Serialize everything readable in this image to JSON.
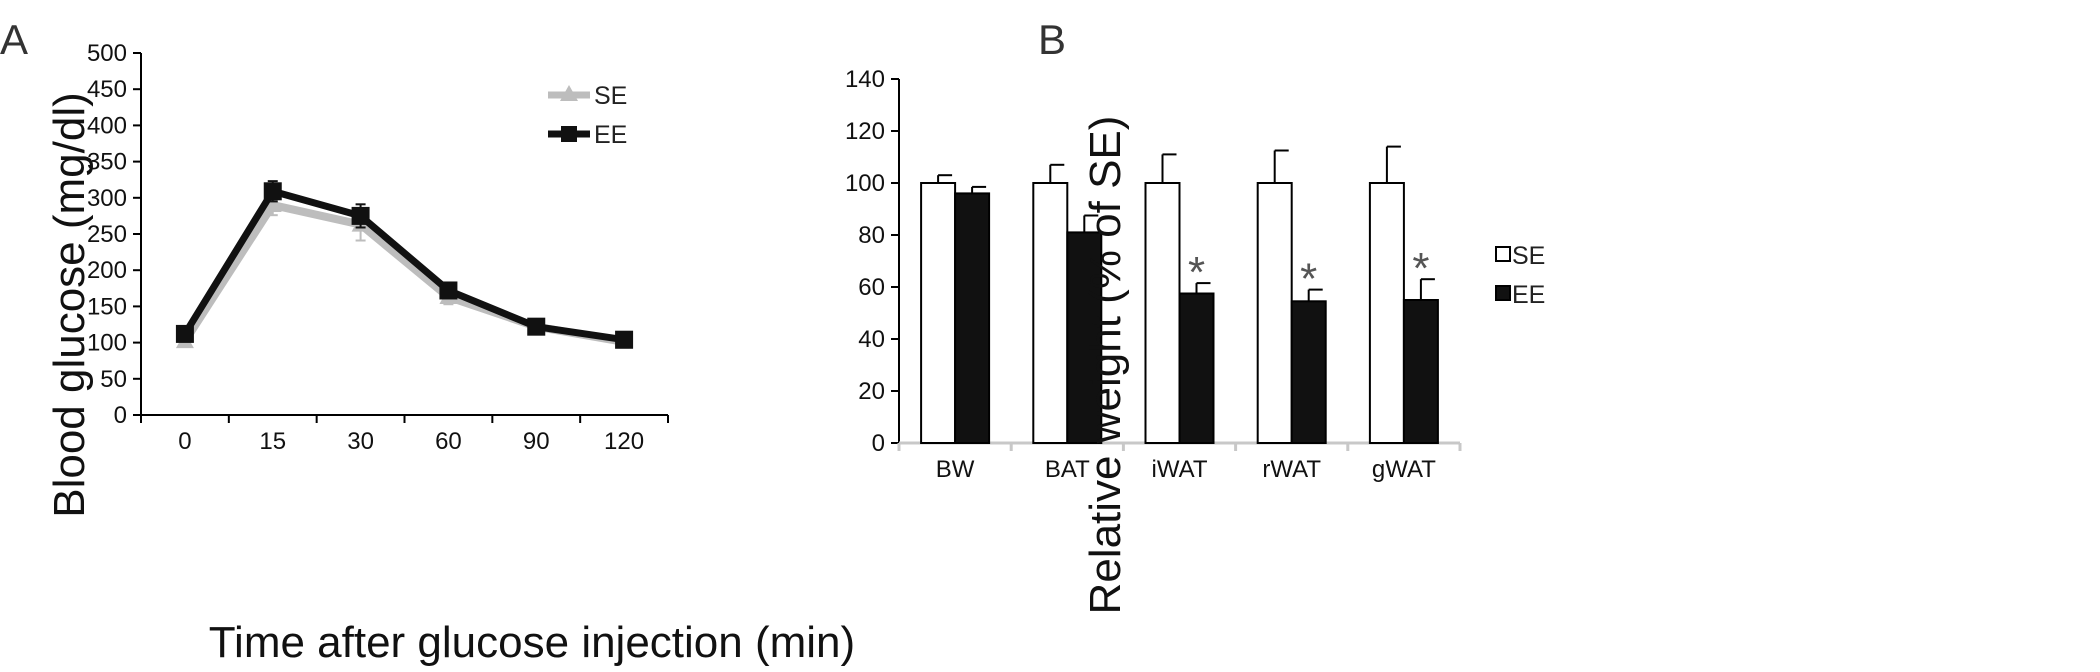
{
  "panels": {
    "a": {
      "letter": "A"
    },
    "b": {
      "letter": "B"
    }
  },
  "chart_data": [
    {
      "type": "line",
      "title": "",
      "xlabel": "Time after glucose injection (min)",
      "ylabel": "Blood glucose (mg/dl)",
      "categories": [
        "0",
        "15",
        "30",
        "60",
        "90",
        "120"
      ],
      "ylim": [
        0,
        500
      ],
      "yticks": [
        0,
        50,
        100,
        150,
        200,
        250,
        300,
        350,
        400,
        450,
        500
      ],
      "grid": false,
      "legend": "top-right",
      "series": [
        {
          "name": "SE",
          "color": "#bdbdbd",
          "marker": "triangle",
          "values": [
            102,
            290,
            263,
            163,
            122,
            101
          ],
          "errors": [
            8,
            14,
            22,
            10,
            6,
            8
          ]
        },
        {
          "name": "EE",
          "color": "#111111",
          "marker": "square",
          "values": [
            112,
            309,
            275,
            172,
            122,
            104
          ],
          "errors": [
            8,
            14,
            16,
            10,
            5,
            7
          ]
        }
      ]
    },
    {
      "type": "bar",
      "title": "",
      "xlabel": "",
      "ylabel": "Relative weight (% of SE)",
      "categories": [
        "BW",
        "BAT",
        "iWAT",
        "rWAT",
        "gWAT"
      ],
      "ylim": [
        0,
        140
      ],
      "yticks": [
        0,
        20,
        40,
        60,
        80,
        100,
        120,
        140
      ],
      "grid": false,
      "legend": "right",
      "series": [
        {
          "name": "SE",
          "color": "#ffffff",
          "values": [
            100,
            100,
            100,
            100,
            100
          ],
          "errors": [
            3,
            7,
            11,
            12.5,
            14
          ]
        },
        {
          "name": "EE",
          "color": "#111111",
          "values": [
            96,
            81,
            57.5,
            54.5,
            55
          ],
          "errors": [
            2.5,
            6.5,
            4,
            4.5,
            8
          ]
        }
      ],
      "annotations": [
        {
          "category": "iWAT",
          "series": "EE",
          "text": "*"
        },
        {
          "category": "rWAT",
          "series": "EE",
          "text": "*"
        },
        {
          "category": "gWAT",
          "series": "EE",
          "text": "*"
        }
      ]
    }
  ]
}
